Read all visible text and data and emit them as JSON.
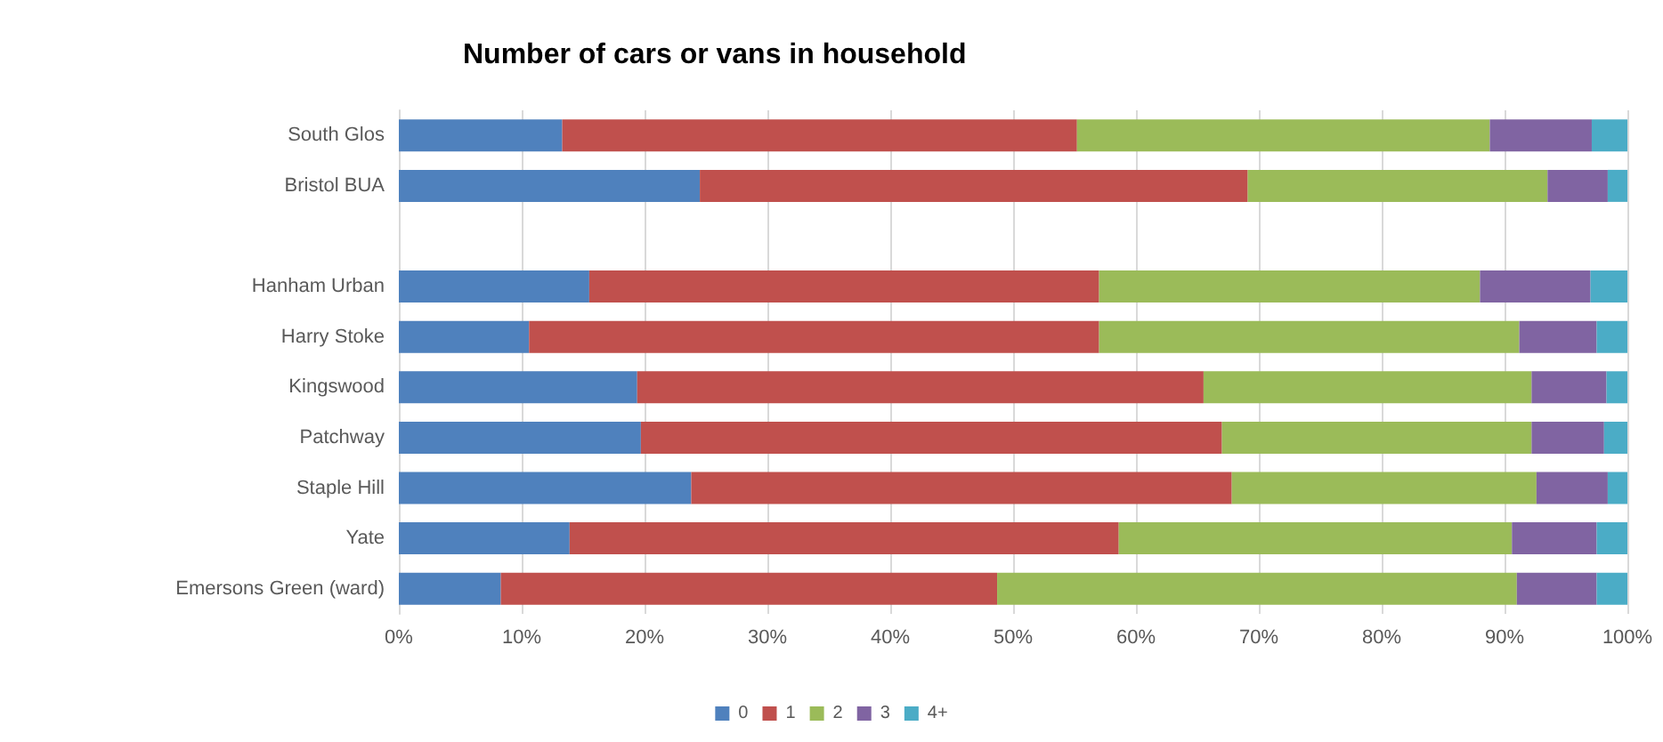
{
  "chart_data": {
    "type": "bar",
    "title": "Number of cars or vans in household",
    "orientation": "horizontal",
    "stacked": true,
    "categories": [
      "South Glos",
      "Bristol BUA",
      null,
      "Hanham Urban",
      "Harry Stoke",
      "Kingswood",
      "Patchway",
      "Staple Hill",
      "Yate",
      "Emersons Green (ward)"
    ],
    "series": [
      {
        "name": "0",
        "color": "#4f81bd",
        "values": [
          13.3,
          24.5,
          null,
          15.5,
          10.6,
          19.4,
          19.7,
          23.8,
          13.9,
          8.3
        ]
      },
      {
        "name": "1",
        "color": "#c0504d",
        "values": [
          41.9,
          44.6,
          null,
          41.5,
          46.4,
          46.1,
          47.3,
          44.0,
          44.7,
          40.4
        ]
      },
      {
        "name": "2",
        "color": "#9bbb59",
        "values": [
          33.6,
          24.4,
          null,
          31.0,
          34.2,
          26.7,
          25.2,
          24.8,
          32.0,
          42.3
        ]
      },
      {
        "name": "3",
        "color": "#8064a2",
        "values": [
          8.3,
          4.9,
          null,
          9.0,
          6.3,
          6.1,
          5.9,
          5.8,
          6.9,
          6.5
        ]
      },
      {
        "name": "4+",
        "color": "#4bacc6",
        "values": [
          2.9,
          1.6,
          null,
          3.0,
          2.5,
          1.7,
          1.9,
          1.6,
          2.5,
          2.5
        ]
      }
    ],
    "xlim": [
      0,
      100
    ],
    "xticks": [
      {
        "value": 0,
        "label": "0%"
      },
      {
        "value": 10,
        "label": "10%"
      },
      {
        "value": 20,
        "label": "20%"
      },
      {
        "value": 30,
        "label": "30%"
      },
      {
        "value": 40,
        "label": "40%"
      },
      {
        "value": 50,
        "label": "50%"
      },
      {
        "value": 60,
        "label": "60%"
      },
      {
        "value": 70,
        "label": "70%"
      },
      {
        "value": 80,
        "label": "80%"
      },
      {
        "value": 90,
        "label": "90%"
      },
      {
        "value": 100,
        "label": "100%"
      }
    ],
    "grid": "x",
    "legend": "bottom"
  }
}
